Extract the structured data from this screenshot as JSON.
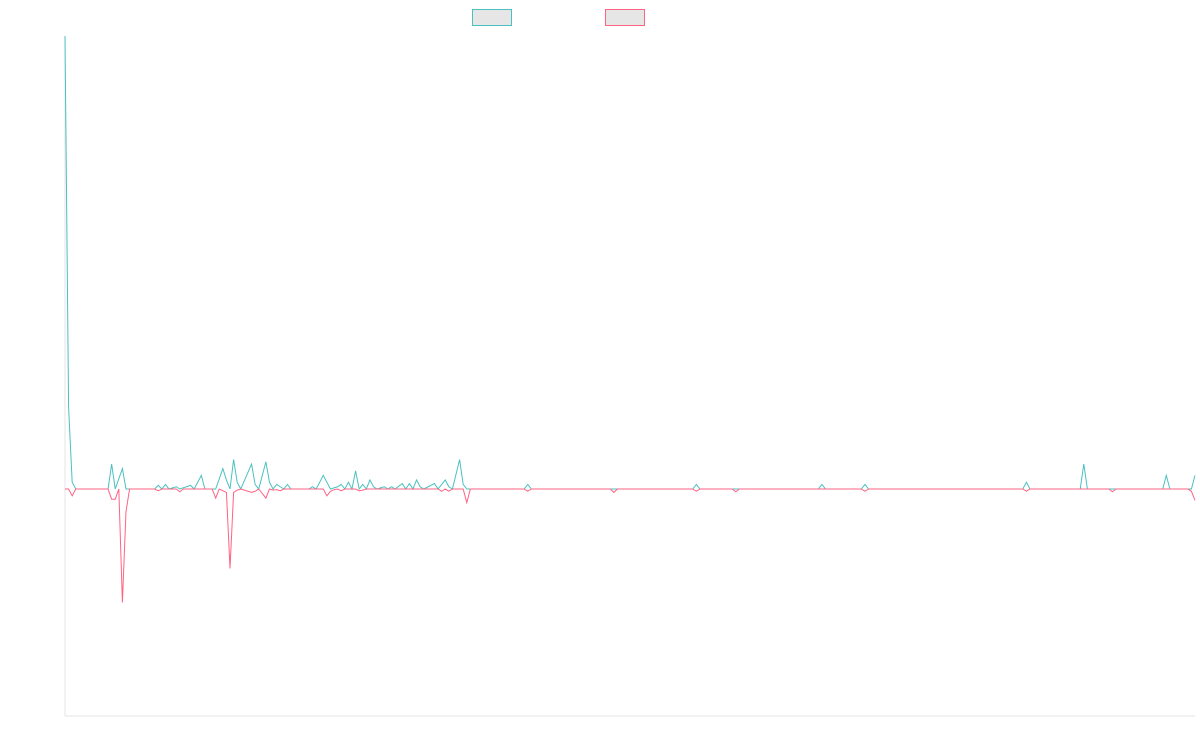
{
  "chart_data": {
    "type": "line",
    "title": "",
    "xlabel": "",
    "ylabel": "",
    "legend_position": "top-center",
    "grid": false,
    "x_count": 316,
    "ylim": [
      -100,
      100
    ],
    "series": [
      {
        "color": "#4bc0c0",
        "fill": "#e6e6e6",
        "points": [
          [
            0,
            100
          ],
          [
            1,
            18
          ],
          [
            2,
            1.5
          ],
          [
            3,
            0
          ],
          [
            12,
            0
          ],
          [
            13,
            5.5
          ],
          [
            14,
            0
          ],
          [
            16,
            4.5
          ],
          [
            17,
            0
          ],
          [
            25,
            0
          ],
          [
            26,
            0.8
          ],
          [
            27,
            0
          ],
          [
            28,
            1
          ],
          [
            29,
            0
          ],
          [
            31,
            0.5
          ],
          [
            32,
            0
          ],
          [
            35,
            0.8
          ],
          [
            36,
            0
          ],
          [
            38,
            3
          ],
          [
            39,
            0
          ],
          [
            42,
            0
          ],
          [
            44,
            4.5
          ],
          [
            45,
            2
          ],
          [
            46,
            0
          ],
          [
            47,
            6.5
          ],
          [
            48,
            1.5
          ],
          [
            49,
            0
          ],
          [
            52,
            5.5
          ],
          [
            53,
            1
          ],
          [
            54,
            0
          ],
          [
            56,
            6
          ],
          [
            57,
            1.5
          ],
          [
            58,
            0
          ],
          [
            59,
            1
          ],
          [
            60,
            0.5
          ],
          [
            61,
            0
          ],
          [
            62,
            1
          ],
          [
            63,
            0
          ],
          [
            68,
            0
          ],
          [
            69,
            0.5
          ],
          [
            70,
            0
          ],
          [
            72,
            3
          ],
          [
            73,
            1.5
          ],
          [
            74,
            0
          ],
          [
            76,
            0.5
          ],
          [
            77,
            1
          ],
          [
            78,
            0
          ],
          [
            79,
            1.5
          ],
          [
            80,
            0
          ],
          [
            81,
            4
          ],
          [
            82,
            0
          ],
          [
            83,
            1
          ],
          [
            84,
            0
          ],
          [
            85,
            2
          ],
          [
            86,
            0.5
          ],
          [
            87,
            0
          ],
          [
            89,
            0.5
          ],
          [
            90,
            0
          ],
          [
            91,
            0.5
          ],
          [
            92,
            0
          ],
          [
            94,
            1.2
          ],
          [
            95,
            0
          ],
          [
            96,
            1.2
          ],
          [
            97,
            0
          ],
          [
            98,
            2
          ],
          [
            99,
            0.5
          ],
          [
            100,
            0
          ],
          [
            103,
            1.2
          ],
          [
            104,
            0
          ],
          [
            106,
            2
          ],
          [
            107,
            0.5
          ],
          [
            108,
            0
          ],
          [
            110,
            6.5
          ],
          [
            111,
            1
          ],
          [
            112,
            0
          ],
          [
            128,
            0
          ],
          [
            129,
            1
          ],
          [
            130,
            0
          ],
          [
            175,
            0
          ],
          [
            176,
            1
          ],
          [
            177,
            0
          ],
          [
            210,
            0
          ],
          [
            211,
            1
          ],
          [
            212,
            0
          ],
          [
            222,
            0
          ],
          [
            223,
            1
          ],
          [
            224,
            0
          ],
          [
            267,
            0
          ],
          [
            268,
            1.5
          ],
          [
            269,
            0
          ],
          [
            283,
            0
          ],
          [
            284,
            5.5
          ],
          [
            285,
            0
          ],
          [
            306,
            0
          ],
          [
            307,
            3
          ],
          [
            308,
            0
          ],
          [
            314,
            0
          ],
          [
            315,
            3
          ]
        ]
      },
      {
        "color": "#ff6384",
        "fill": "#e6e6e6",
        "points": [
          [
            0,
            0
          ],
          [
            1,
            0
          ],
          [
            2,
            -3
          ],
          [
            3,
            0
          ],
          [
            12,
            0
          ],
          [
            13,
            -4.5
          ],
          [
            14,
            -4.5
          ],
          [
            15,
            0
          ],
          [
            16,
            -50
          ],
          [
            17,
            -10
          ],
          [
            18,
            0
          ],
          [
            25,
            0
          ],
          [
            26,
            -0.8
          ],
          [
            27,
            0
          ],
          [
            31,
            0
          ],
          [
            32,
            -1.2
          ],
          [
            33,
            0
          ],
          [
            41,
            0
          ],
          [
            42,
            -4
          ],
          [
            43,
            0
          ],
          [
            45,
            -1.5
          ],
          [
            46,
            -35
          ],
          [
            47,
            -1.5
          ],
          [
            48,
            -0.5
          ],
          [
            49,
            0
          ],
          [
            52,
            -1.5
          ],
          [
            53,
            -1
          ],
          [
            54,
            0
          ],
          [
            56,
            -4
          ],
          [
            57,
            0
          ],
          [
            58,
            -0.5
          ],
          [
            59,
            -0.3
          ],
          [
            60,
            -0.8
          ],
          [
            61,
            0
          ],
          [
            72,
            0
          ],
          [
            73,
            -3
          ],
          [
            74,
            -1
          ],
          [
            75,
            -0.3
          ],
          [
            76,
            0
          ],
          [
            77,
            -0.8
          ],
          [
            78,
            0
          ],
          [
            81,
            0
          ],
          [
            82,
            -0.8
          ],
          [
            83,
            -0.5
          ],
          [
            84,
            0
          ],
          [
            104,
            0
          ],
          [
            105,
            -1
          ],
          [
            106,
            0
          ],
          [
            107,
            -1
          ],
          [
            108,
            0
          ],
          [
            111,
            0
          ],
          [
            112,
            -6
          ],
          [
            113,
            0
          ],
          [
            128,
            0
          ],
          [
            129,
            -1
          ],
          [
            130,
            0
          ],
          [
            152,
            0
          ],
          [
            153,
            -1.5
          ],
          [
            154,
            0
          ],
          [
            175,
            0
          ],
          [
            176,
            -1
          ],
          [
            177,
            0
          ],
          [
            186,
            0
          ],
          [
            187,
            -1.2
          ],
          [
            188,
            0
          ],
          [
            222,
            0
          ],
          [
            223,
            -1
          ],
          [
            224,
            0
          ],
          [
            267,
            0
          ],
          [
            268,
            -1
          ],
          [
            269,
            0
          ],
          [
            291,
            0
          ],
          [
            292,
            -1.2
          ],
          [
            293,
            0
          ],
          [
            313,
            0
          ],
          [
            314,
            -1
          ],
          [
            315,
            -5
          ]
        ]
      }
    ]
  }
}
